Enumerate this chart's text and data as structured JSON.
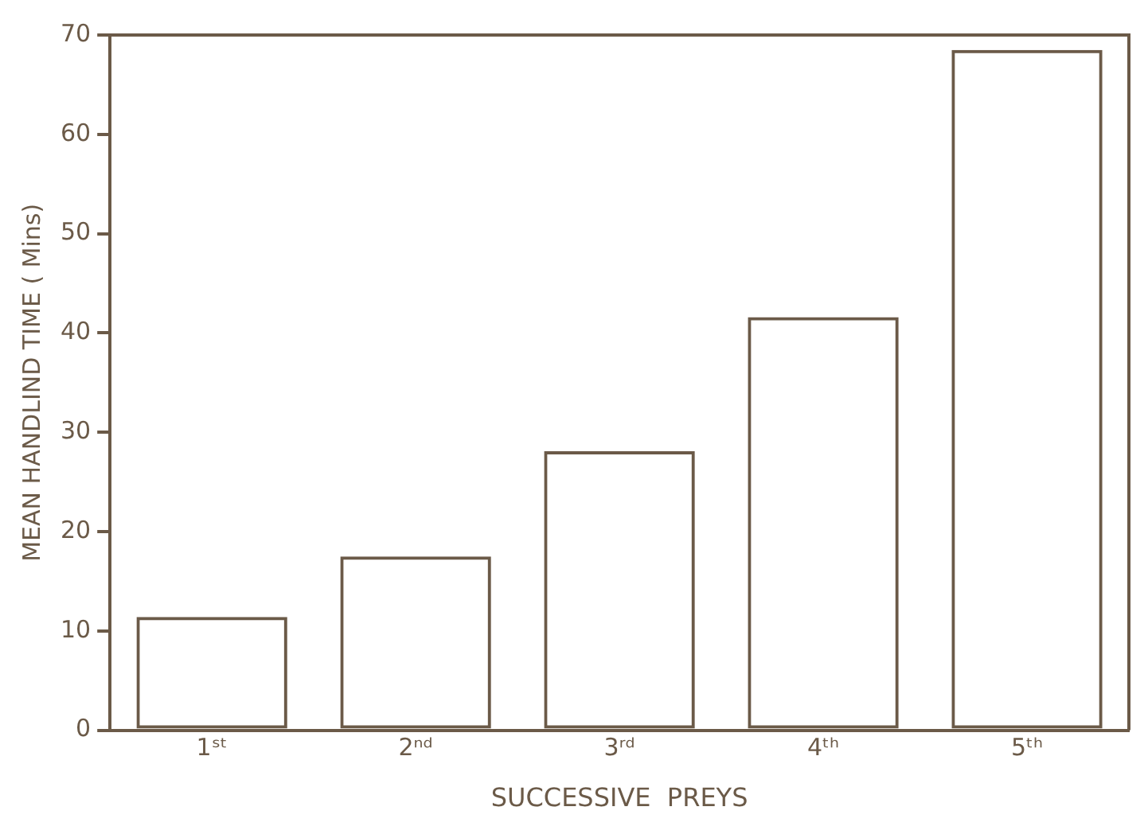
{
  "chart_data": {
    "type": "bar",
    "xlabel": "SUCCESSIVE  PREYS",
    "ylabel": "MEAN HANDLIND TIME ( Mins)",
    "categories": [
      "1ˢᵗ",
      "2ⁿᵈ",
      "3ʳᵈ",
      "4ᵗʰ",
      "5ᵗʰ"
    ],
    "values": [
      11.4,
      17.5,
      28.1,
      41.6,
      68.5
    ],
    "color": "#6b5a48",
    "ylim": [
      0,
      70
    ],
    "yticks": [
      0,
      10,
      20,
      30,
      40,
      50,
      60,
      70
    ],
    "grid": false,
    "legend": false
  }
}
